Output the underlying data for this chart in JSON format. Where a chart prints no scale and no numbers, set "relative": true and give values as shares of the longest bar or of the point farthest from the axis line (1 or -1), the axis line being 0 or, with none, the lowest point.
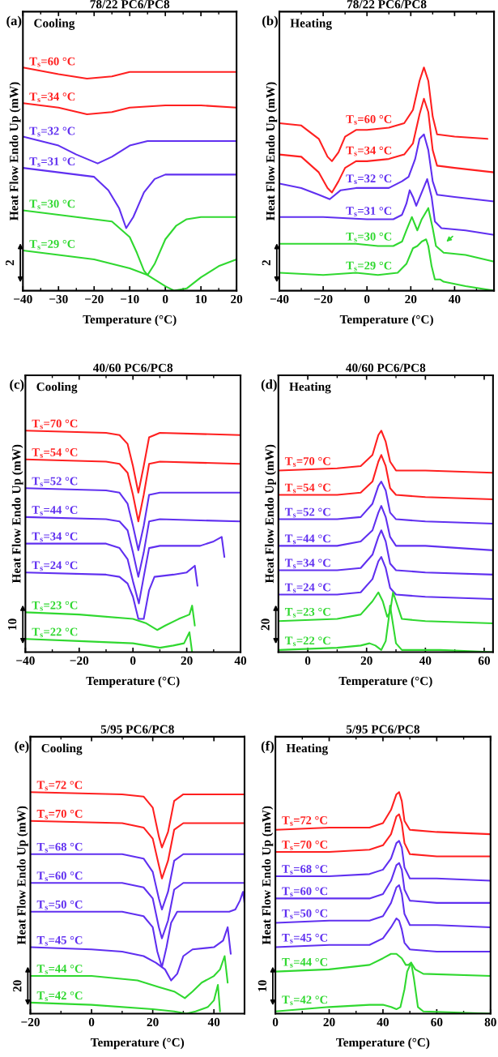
{
  "chart_data": [
    {
      "type": "line",
      "title": "78/22 PC6/PC8",
      "xlabel": "Temperature (°C)",
      "ylabel": "Heat Flow Endo Up (mW)",
      "annotations": [
        "(a)",
        "Cooling",
        "2"
      ],
      "relative": true,
      "xlim": [
        -40,
        20
      ],
      "xticks": [
        -40,
        -30,
        -20,
        -10,
        0,
        10,
        20
      ],
      "series": [
        {
          "name": "T$_{s}$=60 °C",
          "color": "#ff2020",
          "x": [
            -40,
            -30,
            -22,
            -15,
            -10,
            0,
            10,
            20
          ],
          "values": [
            1.0,
            0.97,
            0.95,
            0.96,
            0.98,
            0.98,
            0.98,
            0.98
          ]
        },
        {
          "name": "T$_{s}$=34 °C",
          "color": "#ff2020",
          "x": [
            -40,
            -30,
            -22,
            -15,
            -10,
            0,
            10,
            20
          ],
          "values": [
            0.84,
            0.82,
            0.79,
            0.8,
            0.82,
            0.83,
            0.83,
            0.82
          ]
        },
        {
          "name": "T$_{s}$=32 °C",
          "color": "#6030f0",
          "x": [
            -40,
            -30,
            -25,
            -19,
            -15,
            -10,
            -5,
            0,
            10,
            20
          ],
          "values": [
            0.69,
            0.65,
            0.61,
            0.57,
            0.6,
            0.65,
            0.67,
            0.67,
            0.67,
            0.67
          ]
        },
        {
          "name": "T$_{s}$=31 °C",
          "color": "#6030f0",
          "x": [
            -40,
            -30,
            -20,
            -16,
            -13,
            -11,
            -9,
            -6,
            -3,
            0,
            10,
            20
          ],
          "values": [
            0.55,
            0.53,
            0.51,
            0.45,
            0.37,
            0.28,
            0.33,
            0.44,
            0.5,
            0.52,
            0.52,
            0.52
          ]
        },
        {
          "name": "T$_{s}$=30 °C",
          "color": "#30d830",
          "x": [
            -40,
            -30,
            -20,
            -15,
            -10,
            -8,
            -6,
            -5,
            -3,
            0,
            3,
            6,
            10,
            20
          ],
          "values": [
            0.36,
            0.34,
            0.32,
            0.31,
            0.24,
            0.17,
            0.09,
            0.07,
            0.12,
            0.23,
            0.29,
            0.32,
            0.33,
            0.33
          ]
        },
        {
          "name": "T$_{s}$=29 °C",
          "color": "#30d830",
          "x": [
            -40,
            -30,
            -20,
            -10,
            -5,
            0,
            2.5,
            6,
            10,
            15,
            20
          ],
          "values": [
            0.18,
            0.16,
            0.14,
            0.1,
            0.07,
            0.02,
            0.0,
            0.01,
            0.06,
            0.11,
            0.14
          ]
        }
      ]
    },
    {
      "type": "line",
      "title": "78/22 PC6/PC8",
      "xlabel": "Temperature (°C)",
      "ylabel": "Heat Flow Endo Up (mW)",
      "annotations": [
        "(b)",
        "Heating",
        "2"
      ],
      "relative": true,
      "xlim": [
        -40,
        58
      ],
      "xticks": [
        -40,
        -20,
        0,
        20,
        40
      ],
      "series": [
        {
          "name": "T$_{s}$=60 °C",
          "color": "#ff2020",
          "x": [
            -40,
            -30,
            -22,
            -18,
            -16,
            -13,
            -10,
            -5,
            0,
            10,
            17,
            21,
            24,
            26,
            28,
            30,
            32,
            40,
            55
          ],
          "values": [
            0.75,
            0.74,
            0.68,
            0.6,
            0.58,
            0.62,
            0.69,
            0.72,
            0.72,
            0.73,
            0.75,
            0.81,
            0.94,
            1.0,
            0.94,
            0.78,
            0.7,
            0.69,
            0.68
          ]
        },
        {
          "name": "T$_{s}$=34 °C",
          "color": "#ff2020",
          "x": [
            -40,
            -30,
            -22,
            -18,
            -16,
            -13,
            -10,
            -5,
            0,
            10,
            17,
            21,
            24,
            26,
            28,
            30,
            32,
            40,
            58
          ],
          "values": [
            0.61,
            0.6,
            0.53,
            0.46,
            0.44,
            0.49,
            0.55,
            0.58,
            0.58,
            0.59,
            0.61,
            0.66,
            0.79,
            0.86,
            0.8,
            0.63,
            0.56,
            0.55,
            0.53
          ]
        },
        {
          "name": "T$_{s}$=32 °C",
          "color": "#6030f0",
          "x": [
            -40,
            -30,
            -22,
            -17,
            -12,
            -5,
            0,
            10,
            16,
            19,
            22,
            24,
            26,
            28,
            30,
            32,
            40,
            58
          ],
          "values": [
            0.48,
            0.46,
            0.43,
            0.41,
            0.45,
            0.46,
            0.46,
            0.46,
            0.49,
            0.51,
            0.59,
            0.68,
            0.7,
            0.63,
            0.49,
            0.43,
            0.42,
            0.4
          ]
        },
        {
          "name": "T$_{s}$=31 °C",
          "color": "#6030f0",
          "x": [
            -40,
            -20,
            0,
            12,
            16,
            18,
            19.5,
            21,
            22.5,
            25,
            27.5,
            29.5,
            31,
            34,
            45,
            58
          ],
          "values": [
            0.33,
            0.33,
            0.32,
            0.32,
            0.34,
            0.39,
            0.45,
            0.42,
            0.38,
            0.44,
            0.5,
            0.42,
            0.31,
            0.28,
            0.27,
            0.25
          ]
        },
        {
          "name": "T$_{s}$=30 °C",
          "color": "#30d830",
          "x": [
            -40,
            -20,
            -5,
            5,
            12,
            16,
            18,
            20.5,
            23,
            25,
            28,
            30,
            31.5,
            35,
            45,
            58
          ],
          "values": [
            0.21,
            0.21,
            0.21,
            0.2,
            0.2,
            0.22,
            0.27,
            0.33,
            0.27,
            0.32,
            0.37,
            0.28,
            0.2,
            0.17,
            0.16,
            0.13
          ]
        },
        {
          "name": "T$_{s}$=29 °C",
          "color": "#30d830",
          "x": [
            -40,
            -20,
            -5,
            5,
            14,
            18,
            21,
            23,
            25,
            27,
            28,
            29.5,
            31,
            32.5,
            33.5,
            35,
            45,
            58
          ],
          "values": [
            0.08,
            0.07,
            0.08,
            0.07,
            0.08,
            0.12,
            0.19,
            0.2,
            0.22,
            0.23,
            0.2,
            0.11,
            0.05,
            0.05,
            0.05,
            0.04,
            0.02,
            0.0
          ]
        }
      ]
    },
    {
      "type": "line",
      "title": "40/60 PC6/PC8",
      "xlabel": "Temperature (°C)",
      "ylabel": "Heat Flow Endo Up (mW)",
      "annotations": [
        "(c)",
        "Cooling",
        "10"
      ],
      "relative": true,
      "xlim": [
        -40,
        40
      ],
      "xticks": [
        -40,
        -20,
        0,
        20,
        40
      ],
      "series": [
        {
          "name": "T$_{s}$=70 °C",
          "color": "#ff2020",
          "x": [
            -40,
            -10,
            -5,
            -2,
            0,
            2,
            4,
            6,
            10,
            40
          ],
          "values": [
            1.0,
            0.99,
            0.98,
            0.94,
            0.84,
            0.72,
            0.84,
            0.97,
            0.99,
            0.98
          ]
        },
        {
          "name": "T$_{s}$=54 °C",
          "color": "#ff2020",
          "x": [
            -40,
            -10,
            -5,
            -2,
            0,
            2,
            4,
            6,
            10,
            40
          ],
          "values": [
            0.87,
            0.86,
            0.85,
            0.81,
            0.71,
            0.59,
            0.71,
            0.85,
            0.86,
            0.85
          ]
        },
        {
          "name": "T$_{s}$=52 °C",
          "color": "#6030f0",
          "x": [
            -40,
            -10,
            -5,
            -2,
            0,
            2,
            4,
            6,
            10,
            40
          ],
          "values": [
            0.74,
            0.73,
            0.72,
            0.67,
            0.57,
            0.46,
            0.57,
            0.71,
            0.72,
            0.72
          ]
        },
        {
          "name": "T$_{s}$=44 °C",
          "color": "#6030f0",
          "x": [
            -40,
            -10,
            -5,
            -2,
            0,
            2,
            4,
            6,
            10,
            40
          ],
          "values": [
            0.61,
            0.6,
            0.59,
            0.55,
            0.45,
            0.34,
            0.45,
            0.59,
            0.6,
            0.59
          ]
        },
        {
          "name": "T$_{s}$=34 °C",
          "color": "#6030f0",
          "x": [
            -40,
            -10,
            -5,
            -2,
            0,
            2.2,
            4,
            6,
            10,
            25,
            30,
            33,
            34
          ],
          "values": [
            0.49,
            0.49,
            0.47,
            0.42,
            0.32,
            0.22,
            0.34,
            0.47,
            0.48,
            0.48,
            0.5,
            0.52,
            0.43
          ]
        },
        {
          "name": "T$_{s}$=24 °C",
          "color": "#6030f0",
          "x": [
            -40,
            -10,
            -5,
            -2,
            0,
            2,
            4,
            6,
            8,
            15,
            20,
            23,
            24
          ],
          "values": [
            0.36,
            0.35,
            0.34,
            0.31,
            0.25,
            0.15,
            0.15,
            0.28,
            0.34,
            0.35,
            0.36,
            0.39,
            0.3
          ]
        },
        {
          "name": "T$_{s}$=23 °C",
          "color": "#30d830",
          "x": [
            -40,
            -20,
            0,
            5,
            9,
            12,
            17,
            21,
            22,
            23
          ],
          "values": [
            0.18,
            0.17,
            0.15,
            0.13,
            0.1,
            0.12,
            0.15,
            0.17,
            0.21,
            0.12
          ]
        },
        {
          "name": "T$_{s}$=22 °C",
          "color": "#30d830",
          "x": [
            -40,
            -20,
            0,
            5,
            10,
            15,
            19,
            21,
            22
          ],
          "values": [
            0.06,
            0.05,
            0.04,
            0.03,
            0.02,
            0.03,
            0.04,
            0.09,
            0.0
          ]
        }
      ]
    },
    {
      "type": "line",
      "title": "40/60 PC6/PC8",
      "xlabel": "Temperature (°C)",
      "ylabel": "Heat Flow Endo Up (mW)",
      "annotations": [
        "(d)",
        "Heating",
        "20"
      ],
      "relative": true,
      "xlim": [
        -10,
        63
      ],
      "xticks": [
        0,
        20,
        40,
        60
      ],
      "series": [
        {
          "name": "T$_{s}$=70 °C",
          "color": "#ff2020",
          "x": [
            -10,
            10,
            18,
            22,
            24,
            25,
            26.5,
            28,
            30,
            40,
            63
          ],
          "values": [
            0.82,
            0.83,
            0.84,
            0.89,
            0.98,
            1.0,
            0.95,
            0.86,
            0.82,
            0.82,
            0.81
          ]
        },
        {
          "name": "T$_{s}$=54 °C",
          "color": "#ff2020",
          "x": [
            -10,
            10,
            18,
            22,
            24,
            25,
            26.5,
            28,
            30,
            40,
            63
          ],
          "values": [
            0.71,
            0.71,
            0.72,
            0.77,
            0.86,
            0.89,
            0.84,
            0.74,
            0.71,
            0.7,
            0.69
          ]
        },
        {
          "name": "T$_{s}$=52 °C",
          "color": "#6030f0",
          "x": [
            -10,
            10,
            18,
            22,
            24,
            25,
            26.5,
            28,
            30,
            40,
            63
          ],
          "values": [
            0.6,
            0.6,
            0.61,
            0.67,
            0.75,
            0.77,
            0.73,
            0.63,
            0.6,
            0.59,
            0.58
          ]
        },
        {
          "name": "T$_{s}$=44 °C",
          "color": "#6030f0",
          "x": [
            -10,
            10,
            18,
            22,
            24,
            25,
            26.5,
            28,
            30,
            40,
            63
          ],
          "values": [
            0.48,
            0.48,
            0.5,
            0.55,
            0.63,
            0.66,
            0.61,
            0.52,
            0.48,
            0.48,
            0.46
          ]
        },
        {
          "name": "T$_{s}$=34 °C",
          "color": "#6030f0",
          "x": [
            -10,
            10,
            18,
            22,
            24,
            25,
            26.5,
            28,
            30,
            40,
            63
          ],
          "values": [
            0.37,
            0.37,
            0.38,
            0.44,
            0.52,
            0.55,
            0.5,
            0.4,
            0.37,
            0.36,
            0.35
          ]
        },
        {
          "name": "T$_{s}$=24 °C",
          "color": "#6030f0",
          "x": [
            -10,
            10,
            18,
            22,
            24,
            25,
            26.5,
            28,
            30,
            40,
            63
          ],
          "values": [
            0.26,
            0.26,
            0.27,
            0.33,
            0.41,
            0.43,
            0.38,
            0.29,
            0.26,
            0.25,
            0.24
          ]
        },
        {
          "name": "T$_{s}$=23 °C",
          "color": "#30d830",
          "x": [
            -10,
            10,
            18,
            22,
            24,
            25.5,
            27,
            28,
            29,
            30,
            32,
            40,
            63
          ],
          "values": [
            0.14,
            0.15,
            0.17,
            0.23,
            0.27,
            0.23,
            0.16,
            0.18,
            0.27,
            0.23,
            0.15,
            0.14,
            0.13
          ]
        },
        {
          "name": "T$_{s}$=22 °C",
          "color": "#30d830",
          "x": [
            -10,
            10,
            18,
            21,
            23,
            25,
            26.5,
            27.5,
            28,
            28.7,
            30,
            32,
            45,
            63
          ],
          "values": [
            0.01,
            0.02,
            0.03,
            0.04,
            0.03,
            0.01,
            0.05,
            0.15,
            0.21,
            0.15,
            0.04,
            0.01,
            0.01,
            0.0
          ]
        }
      ]
    },
    {
      "type": "line",
      "title": "5/95 PC6/PC8",
      "xlabel": "Temperature (°C)",
      "ylabel": "Heat Flow Endo Up (mW)",
      "annotations": [
        "(e)",
        "Cooling",
        "20"
      ],
      "relative": true,
      "xlim": [
        -20,
        50
      ],
      "xticks": [
        -20,
        0,
        20,
        40
      ],
      "series": [
        {
          "name": "T$_{s}$=72 °C",
          "color": "#ff2020",
          "x": [
            -20,
            10,
            17,
            20,
            22,
            23,
            25,
            27,
            30,
            50
          ],
          "values": [
            1.0,
            0.99,
            0.98,
            0.93,
            0.8,
            0.75,
            0.82,
            0.96,
            0.99,
            0.99
          ]
        },
        {
          "name": "T$_{s}$=70 °C",
          "color": "#ff2020",
          "x": [
            -20,
            10,
            17,
            20,
            22,
            23,
            25,
            27,
            30,
            50
          ],
          "values": [
            0.87,
            0.86,
            0.84,
            0.79,
            0.67,
            0.61,
            0.69,
            0.83,
            0.86,
            0.86
          ]
        },
        {
          "name": "T$_{s}$=68 °C",
          "color": "#6030f0",
          "x": [
            -20,
            10,
            17,
            20,
            22,
            23,
            25,
            27,
            30,
            50
          ],
          "values": [
            0.72,
            0.72,
            0.7,
            0.64,
            0.52,
            0.47,
            0.55,
            0.69,
            0.72,
            0.72
          ]
        },
        {
          "name": "T$_{s}$=60 °C",
          "color": "#6030f0",
          "x": [
            -20,
            10,
            17,
            20,
            22,
            23,
            25,
            27,
            30,
            50
          ],
          "values": [
            0.59,
            0.59,
            0.57,
            0.52,
            0.39,
            0.34,
            0.42,
            0.56,
            0.59,
            0.59
          ]
        },
        {
          "name": "T$_{s}$=50 °C",
          "color": "#6030f0",
          "x": [
            -20,
            10,
            17,
            20,
            21.5,
            23,
            24.5,
            26,
            28,
            40,
            45,
            47,
            48.5,
            49.5,
            50
          ],
          "values": [
            0.46,
            0.46,
            0.44,
            0.39,
            0.28,
            0.21,
            0.3,
            0.41,
            0.46,
            0.46,
            0.46,
            0.47,
            0.51,
            0.55,
            0.5
          ]
        },
        {
          "name": "T$_{s}$=45 °C",
          "color": "#6030f0",
          "x": [
            -20,
            0,
            10,
            17,
            21,
            24,
            26,
            28,
            30,
            33,
            40,
            43,
            44.5,
            45.5
          ],
          "values": [
            0.3,
            0.29,
            0.28,
            0.26,
            0.23,
            0.2,
            0.15,
            0.18,
            0.26,
            0.29,
            0.3,
            0.33,
            0.39,
            0.27
          ]
        },
        {
          "name": "T$_{s}$=44 °C",
          "color": "#30d830",
          "x": [
            -20,
            0,
            15,
            22,
            27,
            30.5,
            33,
            36,
            40,
            42,
            43.5,
            44.5
          ],
          "values": [
            0.17,
            0.17,
            0.15,
            0.12,
            0.1,
            0.07,
            0.1,
            0.14,
            0.17,
            0.2,
            0.26,
            0.14
          ]
        },
        {
          "name": "T$_{s}$=42 °C",
          "color": "#30d830",
          "x": [
            -20,
            0,
            20,
            27,
            31,
            34,
            38,
            40,
            41.3,
            42
          ],
          "values": [
            0.05,
            0.04,
            0.02,
            0.01,
            0.0,
            0.01,
            0.03,
            0.06,
            0.13,
            0.01
          ]
        }
      ]
    },
    {
      "type": "line",
      "title": "5/95 PC6/PC8",
      "xlabel": "Temperature (°C)",
      "ylabel": "Heat Flow Endo Up (mW)",
      "annotations": [
        "(f)",
        "Heating",
        "10"
      ],
      "relative": true,
      "xlim": [
        0,
        80
      ],
      "xticks": [
        0,
        20,
        40,
        60,
        80
      ],
      "series": [
        {
          "name": "T$_{s}$=72 °C",
          "color": "#ff2020",
          "x": [
            0,
            20,
            35,
            40,
            43,
            45,
            46,
            47,
            48,
            50,
            60,
            80
          ],
          "values": [
            0.83,
            0.84,
            0.84,
            0.86,
            0.92,
            0.99,
            1.0,
            0.96,
            0.87,
            0.83,
            0.82,
            0.81
          ]
        },
        {
          "name": "T$_{s}$=70 °C",
          "color": "#ff2020",
          "x": [
            0,
            20,
            35,
            40,
            43,
            45,
            46,
            47,
            48,
            50,
            60,
            80
          ],
          "values": [
            0.73,
            0.73,
            0.74,
            0.76,
            0.81,
            0.89,
            0.9,
            0.86,
            0.77,
            0.72,
            0.71,
            0.71
          ]
        },
        {
          "name": "T$_{s}$=68 °C",
          "color": "#6030f0",
          "x": [
            0,
            20,
            35,
            40,
            43,
            45,
            46,
            47,
            48,
            50,
            60,
            80
          ],
          "values": [
            0.62,
            0.62,
            0.63,
            0.65,
            0.7,
            0.77,
            0.78,
            0.75,
            0.66,
            0.61,
            0.61,
            0.6
          ]
        },
        {
          "name": "T$_{s}$=60 °C",
          "color": "#6030f0",
          "x": [
            0,
            20,
            35,
            40,
            43,
            45,
            46,
            47,
            48,
            50,
            60,
            80
          ],
          "values": [
            0.52,
            0.52,
            0.52,
            0.54,
            0.6,
            0.67,
            0.68,
            0.65,
            0.56,
            0.51,
            0.5,
            0.5
          ]
        },
        {
          "name": "T$_{s}$=50 °C",
          "color": "#6030f0",
          "x": [
            0,
            20,
            35,
            40,
            43,
            45,
            46,
            47,
            48,
            50,
            60,
            80
          ],
          "values": [
            0.41,
            0.42,
            0.42,
            0.44,
            0.5,
            0.57,
            0.58,
            0.54,
            0.45,
            0.4,
            0.4,
            0.39
          ]
        },
        {
          "name": "T$_{s}$=45 °C",
          "color": "#6030f0",
          "x": [
            0,
            20,
            35,
            40,
            43,
            45,
            46,
            47,
            48,
            50,
            60,
            80
          ],
          "values": [
            0.3,
            0.31,
            0.31,
            0.34,
            0.39,
            0.43,
            0.42,
            0.38,
            0.32,
            0.29,
            0.28,
            0.28
          ]
        },
        {
          "name": "T$_{s}$=44 °C",
          "color": "#30d830",
          "x": [
            0,
            20,
            35,
            40,
            43,
            45,
            47,
            48.5,
            49.5,
            50.5,
            52,
            55,
            80
          ],
          "values": [
            0.19,
            0.2,
            0.22,
            0.25,
            0.27,
            0.27,
            0.25,
            0.22,
            0.22,
            0.23,
            0.2,
            0.18,
            0.17
          ]
        },
        {
          "name": "T$_{s}$=42 °C",
          "color": "#30d830",
          "x": [
            0,
            20,
            35,
            40,
            43,
            45,
            46.5,
            48,
            49,
            50.5,
            51.5,
            53,
            55,
            80
          ],
          "values": [
            0.01,
            0.03,
            0.04,
            0.04,
            0.03,
            0.02,
            0.03,
            0.11,
            0.19,
            0.23,
            0.16,
            0.03,
            0.01,
            0.0
          ]
        }
      ]
    }
  ]
}
